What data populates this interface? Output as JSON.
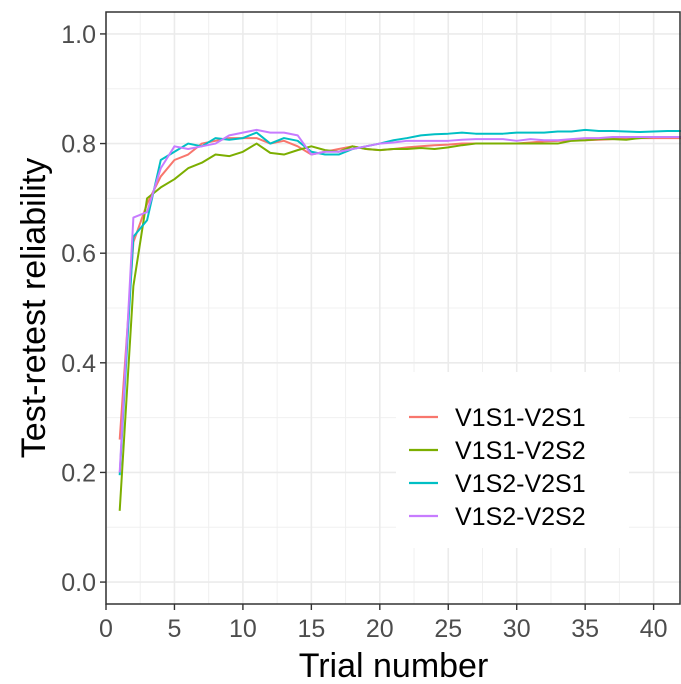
{
  "chart_data": {
    "type": "line",
    "title": "",
    "xlabel": "Trial number",
    "ylabel": "Test-retest reliability",
    "xlim": [
      0,
      42
    ],
    "ylim": [
      -0.04,
      1.04
    ],
    "x_ticks": [
      0,
      5,
      10,
      15,
      20,
      25,
      30,
      35,
      40
    ],
    "x_tick_labels": [
      "0",
      "5",
      "10",
      "15",
      "20",
      "25",
      "30",
      "35",
      "40"
    ],
    "y_ticks": [
      0.0,
      0.2,
      0.4,
      0.6,
      0.8,
      1.0
    ],
    "y_tick_labels": [
      "0.0",
      "0.2",
      "0.4",
      "0.6",
      "0.8",
      "1.0"
    ],
    "grid": true,
    "legend_position": "bottom-right",
    "x": [
      1,
      2,
      3,
      4,
      5,
      6,
      7,
      8,
      9,
      10,
      11,
      12,
      13,
      14,
      15,
      16,
      17,
      18,
      19,
      20,
      21,
      22,
      23,
      24,
      25,
      26,
      27,
      28,
      29,
      30,
      31,
      32,
      33,
      34,
      35,
      36,
      37,
      38,
      39,
      40,
      41,
      42
    ],
    "series": [
      {
        "name": "V1S1-V2S1",
        "color": "#F8766D",
        "values": [
          0.26,
          0.62,
          0.69,
          0.74,
          0.77,
          0.78,
          0.8,
          0.805,
          0.81,
          0.81,
          0.81,
          0.8,
          0.805,
          0.795,
          0.78,
          0.785,
          0.79,
          0.795,
          0.79,
          0.788,
          0.79,
          0.793,
          0.795,
          0.797,
          0.798,
          0.8,
          0.8,
          0.8,
          0.8,
          0.8,
          0.802,
          0.804,
          0.805,
          0.806,
          0.806,
          0.807,
          0.808,
          0.81,
          0.81,
          0.81,
          0.81,
          0.81
        ]
      },
      {
        "name": "V1S1-V2S2",
        "color": "#7CAE00",
        "values": [
          0.13,
          0.54,
          0.7,
          0.72,
          0.735,
          0.755,
          0.765,
          0.78,
          0.777,
          0.785,
          0.8,
          0.783,
          0.78,
          0.788,
          0.795,
          0.788,
          0.785,
          0.795,
          0.79,
          0.788,
          0.79,
          0.79,
          0.792,
          0.79,
          0.793,
          0.797,
          0.8,
          0.8,
          0.8,
          0.8,
          0.8,
          0.8,
          0.8,
          0.805,
          0.806,
          0.808,
          0.808,
          0.807,
          0.81,
          0.812,
          0.812,
          0.812
        ]
      },
      {
        "name": "V1S2-V2S1",
        "color": "#00BFC4",
        "values": [
          0.195,
          0.63,
          0.66,
          0.77,
          0.785,
          0.8,
          0.795,
          0.81,
          0.807,
          0.81,
          0.82,
          0.8,
          0.81,
          0.805,
          0.785,
          0.78,
          0.78,
          0.79,
          0.795,
          0.8,
          0.806,
          0.81,
          0.815,
          0.817,
          0.818,
          0.82,
          0.818,
          0.818,
          0.818,
          0.82,
          0.82,
          0.82,
          0.822,
          0.822,
          0.825,
          0.823,
          0.823,
          0.822,
          0.821,
          0.822,
          0.823,
          0.823
        ]
      },
      {
        "name": "V1S2-V2S2",
        "color": "#C77CFF",
        "values": [
          0.2,
          0.665,
          0.675,
          0.755,
          0.795,
          0.79,
          0.795,
          0.8,
          0.815,
          0.82,
          0.825,
          0.82,
          0.82,
          0.815,
          0.78,
          0.785,
          0.785,
          0.79,
          0.795,
          0.8,
          0.802,
          0.805,
          0.805,
          0.805,
          0.805,
          0.807,
          0.808,
          0.808,
          0.808,
          0.805,
          0.808,
          0.806,
          0.806,
          0.808,
          0.81,
          0.81,
          0.812,
          0.812,
          0.812,
          0.812,
          0.812,
          0.812
        ]
      }
    ]
  }
}
